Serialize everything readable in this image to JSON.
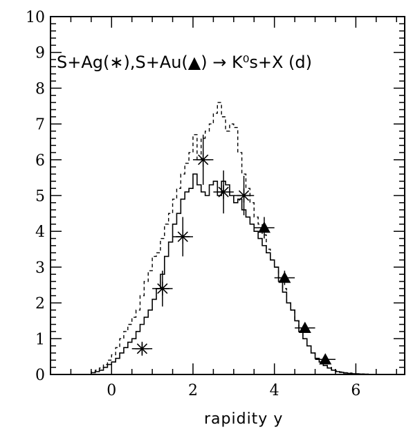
{
  "chart_data": {
    "type": "line",
    "title": "",
    "annotation": "S+Ag(∗),S+Au(▲) → K⁰s+X (d)",
    "xlabel": "rapidity   y",
    "ylabel": "",
    "xlim": [
      -1.5,
      7.2
    ],
    "ylim": [
      0,
      10
    ],
    "x_ticks": [
      "0",
      "2",
      "4",
      "6"
    ],
    "y_ticks": [
      "0",
      "1",
      "2",
      "3",
      "4",
      "5",
      "6",
      "7",
      "8",
      "9",
      "10"
    ],
    "grid": false,
    "series": [
      {
        "style": "solid-histogram",
        "x": [
          -0.5,
          -0.4,
          -0.3,
          -0.2,
          -0.1,
          0.0,
          0.1,
          0.2,
          0.3,
          0.4,
          0.5,
          0.6,
          0.7,
          0.8,
          0.9,
          1.0,
          1.1,
          1.2,
          1.3,
          1.4,
          1.5,
          1.6,
          1.7,
          1.8,
          1.9,
          2.0,
          2.1,
          2.2,
          2.3,
          2.4,
          2.5,
          2.6,
          2.7,
          2.8,
          2.9,
          3.0,
          3.1,
          3.2,
          3.3,
          3.4,
          3.5,
          3.6,
          3.7,
          3.8,
          3.9,
          4.0,
          4.1,
          4.2,
          4.3,
          4.4,
          4.5,
          4.6,
          4.7,
          4.8,
          4.9,
          5.0,
          5.1,
          5.2,
          5.3,
          5.4,
          5.5,
          5.6,
          5.7,
          5.8,
          5.9,
          6.0,
          6.1,
          6.2,
          6.3,
          6.4
        ],
        "values": [
          0.05,
          0.08,
          0.12,
          0.2,
          0.28,
          0.35,
          0.45,
          0.6,
          0.75,
          0.9,
          1.0,
          1.2,
          1.4,
          1.6,
          1.8,
          2.1,
          2.4,
          2.8,
          3.3,
          3.7,
          4.2,
          4.5,
          4.9,
          5.1,
          5.2,
          5.6,
          5.3,
          5.1,
          5.0,
          5.3,
          5.4,
          5.0,
          5.4,
          5.3,
          5.0,
          4.8,
          4.9,
          4.6,
          4.4,
          4.2,
          4.0,
          3.8,
          3.6,
          3.4,
          3.2,
          3.0,
          2.6,
          2.3,
          2.0,
          1.8,
          1.5,
          1.2,
          1.0,
          0.8,
          0.6,
          0.45,
          0.35,
          0.25,
          0.18,
          0.12,
          0.08,
          0.06,
          0.04,
          0.03,
          0.02,
          0.015,
          0.01,
          0.008,
          0.005,
          0.0
        ]
      },
      {
        "style": "dashed-histogram",
        "x": [
          -0.5,
          -0.4,
          -0.3,
          -0.2,
          -0.1,
          0.0,
          0.1,
          0.2,
          0.3,
          0.4,
          0.5,
          0.6,
          0.7,
          0.8,
          0.9,
          1.0,
          1.1,
          1.2,
          1.3,
          1.4,
          1.5,
          1.6,
          1.7,
          1.8,
          1.9,
          2.0,
          2.1,
          2.2,
          2.3,
          2.4,
          2.5,
          2.6,
          2.7,
          2.8,
          2.9,
          3.0,
          3.1,
          3.2,
          3.3,
          3.4,
          3.5,
          3.6,
          3.7,
          3.8,
          3.9,
          4.0,
          4.1,
          4.2,
          4.3,
          4.4,
          4.5,
          4.6,
          4.7,
          4.8,
          4.9,
          5.0,
          5.1,
          5.2,
          5.3,
          5.4,
          5.5,
          5.6,
          5.7,
          5.8,
          5.9,
          6.0,
          6.1,
          6.2,
          6.3,
          6.4
        ],
        "values": [
          0.08,
          0.12,
          0.18,
          0.28,
          0.4,
          0.55,
          0.75,
          1.0,
          1.2,
          1.4,
          1.6,
          1.8,
          2.2,
          2.6,
          2.9,
          3.3,
          3.4,
          3.8,
          4.2,
          4.5,
          4.9,
          5.2,
          5.6,
          5.9,
          6.2,
          6.7,
          6.0,
          6.6,
          6.8,
          7.0,
          7.3,
          7.6,
          7.2,
          6.8,
          7.0,
          6.9,
          6.2,
          5.6,
          5.2,
          4.8,
          4.4,
          4.2,
          3.9,
          3.5,
          3.2,
          3.0,
          2.7,
          2.4,
          2.0,
          1.8,
          1.5,
          1.2,
          1.0,
          0.8,
          0.6,
          0.45,
          0.35,
          0.25,
          0.2,
          0.14,
          0.1,
          0.07,
          0.05,
          0.04,
          0.03,
          0.02,
          0.015,
          0.01,
          0.005,
          0.0
        ]
      },
      {
        "name": "S+Ag",
        "marker": "asterisk",
        "x": [
          0.75,
          1.25,
          1.75,
          2.25,
          2.75,
          3.25
        ],
        "values": [
          0.72,
          2.4,
          3.85,
          6.0,
          5.1,
          5.0
        ],
        "y_err": [
          0.15,
          0.5,
          0.55,
          0.7,
          0.6,
          0.55
        ],
        "x_err": [
          0.25,
          0.25,
          0.25,
          0.25,
          0.25,
          0.25
        ]
      },
      {
        "name": "S+Au",
        "marker": "triangle",
        "x": [
          3.75,
          4.25,
          4.75,
          5.25
        ],
        "values": [
          4.1,
          2.7,
          1.3,
          0.42
        ],
        "y_err": [
          0.3,
          0.2,
          0.12,
          0.06
        ],
        "x_err": [
          0.25,
          0.25,
          0.25,
          0.25
        ]
      }
    ]
  }
}
